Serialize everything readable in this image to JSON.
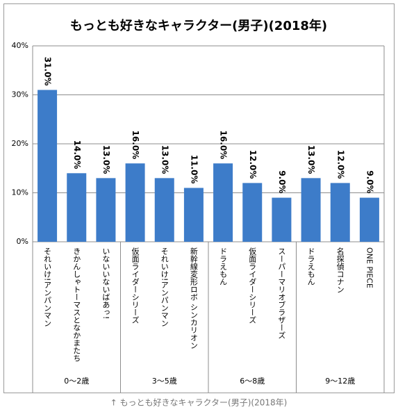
{
  "chart_data": {
    "type": "bar",
    "title": "もっとも好きなキャラクター(男子)(2018年)",
    "caption": "↑ もっとも好きなキャラクター(男子)(2018年)",
    "color": "#3d7cc9",
    "grid": true,
    "ylim": [
      0,
      40
    ],
    "yticks": [
      {
        "value": 0,
        "label": "0%"
      },
      {
        "value": 10,
        "label": "10%"
      },
      {
        "value": 20,
        "label": "20%"
      },
      {
        "value": 30,
        "label": "30%"
      },
      {
        "value": 40,
        "label": "40%"
      }
    ],
    "groups": [
      {
        "name": "0〜2歳",
        "categories": [
          "それいけ!アンパンマン",
          "きかんしゃトーマスとなかまたち",
          "いないいないばあっ!"
        ],
        "values": [
          31.0,
          14.0,
          13.0
        ],
        "value_labels": [
          "31.0%",
          "14.0%",
          "13.0%"
        ]
      },
      {
        "name": "3〜5歳",
        "categories": [
          "仮面ライダーシリーズ",
          "それいけ!アンパンマン",
          "新幹線変形ロボ シンカリオン"
        ],
        "values": [
          16.0,
          13.0,
          11.0
        ],
        "value_labels": [
          "16.0%",
          "13.0%",
          "11.0%"
        ]
      },
      {
        "name": "6〜8歳",
        "categories": [
          "ドラえもん",
          "仮面ライダーシリーズ",
          "スーパーマリオブラザーズ"
        ],
        "values": [
          16.0,
          12.0,
          9.0
        ],
        "value_labels": [
          "16.0%",
          "12.0%",
          "9.0%"
        ]
      },
      {
        "name": "9〜12歳",
        "categories": [
          "ドラえもん",
          "名探偵コナン",
          "ONE PIECE"
        ],
        "values": [
          13.0,
          12.0,
          9.0
        ],
        "value_labels": [
          "13.0%",
          "12.0%",
          "9.0%"
        ]
      }
    ]
  }
}
